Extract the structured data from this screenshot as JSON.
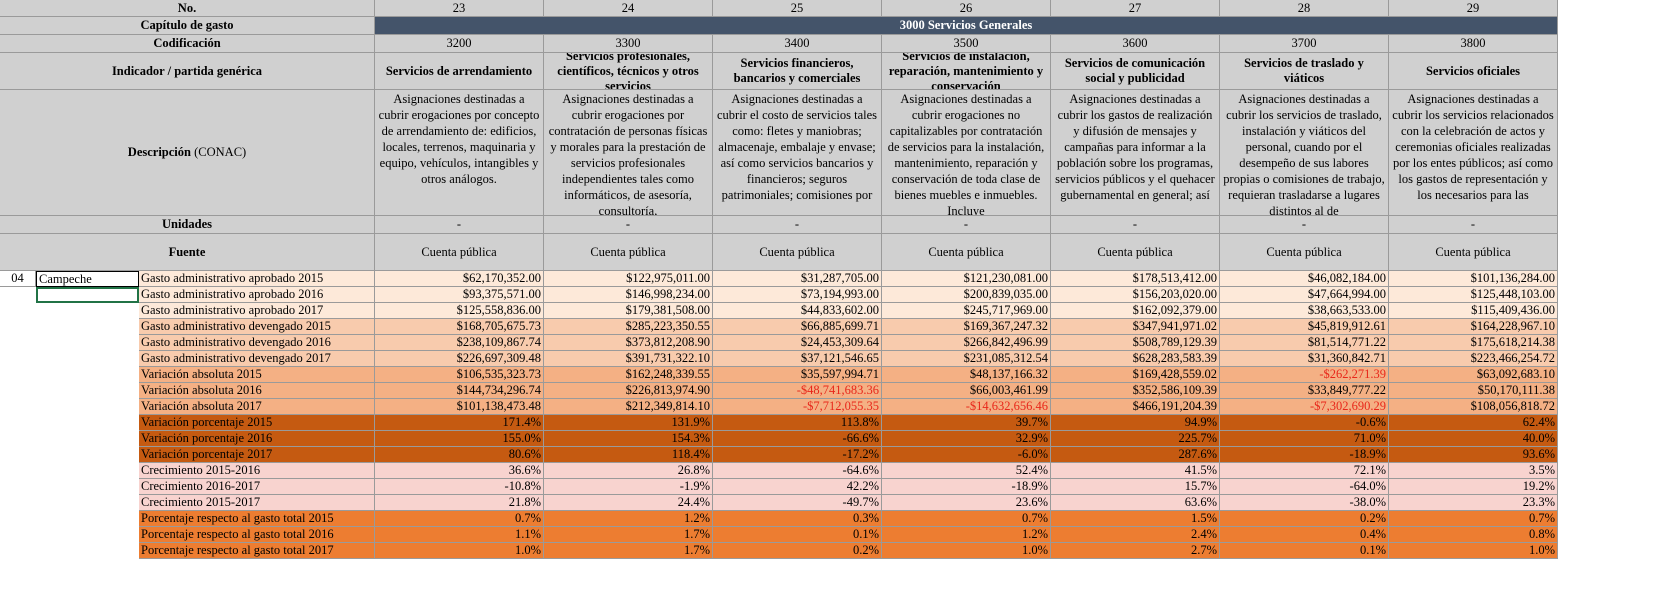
{
  "header": {
    "no_label": "No.",
    "capitulo_label": "Capítulo de gasto",
    "capitulo_value": "3000 Servicios Generales",
    "codificacion_label": "Codificación",
    "indicador_label": "Indicador / partida genérica",
    "descripcion_label": "Descripción",
    "descripcion_suffix": "(CONAC)",
    "unidades_label": "Unidades",
    "fuente_label": "Fuente"
  },
  "columns": [
    {
      "no": "23",
      "code": "3200",
      "title": "Servicios de arrendamiento",
      "desc": "Asignaciones destinadas a cubrir erogaciones por concepto de arrendamiento de: edificios, locales, terrenos, maquinaria y equipo, vehículos, intangibles y otros análogos.",
      "unit": "-",
      "source": "Cuenta pública"
    },
    {
      "no": "24",
      "code": "3300",
      "title": "Servicios profesionales, científicos, técnicos y otros servicios",
      "desc": "Asignaciones destinadas a cubrir erogaciones por contratación de personas físicas y morales para la prestación de servicios profesionales independientes tales como informáticos, de asesoría, consultoría,",
      "unit": "-",
      "source": "Cuenta pública"
    },
    {
      "no": "25",
      "code": "3400",
      "title": "Servicios financieros, bancarios y comerciales",
      "desc": "Asignaciones destinadas a cubrir el costo de servicios tales como: fletes y maniobras; almacenaje, embalaje y envase; así como servicios bancarios y financieros; seguros patrimoniales; comisiones por",
      "unit": "-",
      "source": "Cuenta pública"
    },
    {
      "no": "26",
      "code": "3500",
      "title": "Servicios de instalación, reparación, mantenimiento y conservación",
      "desc": "Asignaciones destinadas a cubrir erogaciones no capitalizables por contratación de servicios para la instalación, mantenimiento, reparación y conservación de toda clase de bienes muebles e inmuebles. Incluye",
      "unit": "-",
      "source": "Cuenta pública"
    },
    {
      "no": "27",
      "code": "3600",
      "title": "Servicios de comunicación social y publicidad",
      "desc": "Asignaciones destinadas a cubrir los gastos de realización y difusión de mensajes y campañas para informar a la población sobre los programas, servicios públicos y el quehacer gubernamental en general; así",
      "unit": "-",
      "source": "Cuenta pública"
    },
    {
      "no": "28",
      "code": "3700",
      "title": "Servicios de traslado y viáticos",
      "desc": "Asignaciones destinadas a cubrir los servicios de traslado, instalación y viáticos del personal, cuando por el desempeño de sus labores propias o comisiones de trabajo, requieran trasladarse a lugares distintos al de",
      "unit": "-",
      "source": "Cuenta pública"
    },
    {
      "no": "29",
      "code": "3800",
      "title": "Servicios oficiales",
      "desc": "Asignaciones destinadas a cubrir los servicios relacionados con la celebración de actos y ceremonias oficiales realizadas por los entes públicos; así como los gastos de representación y los necesarios para las",
      "unit": "-",
      "source": "Cuenta pública"
    }
  ],
  "state": {
    "no": "04",
    "name": "Campeche"
  },
  "rows": [
    {
      "label": "Gasto administrativo aprobado 2015",
      "bg": "bg1",
      "values": [
        "$62,170,352.00",
        "$122,975,011.00",
        "$31,287,705.00",
        "$121,230,081.00",
        "$178,513,412.00",
        "$46,082,184.00",
        "$101,136,284.00"
      ]
    },
    {
      "label": "Gasto administrativo aprobado 2016",
      "bg": "bg1",
      "values": [
        "$93,375,571.00",
        "$146,998,234.00",
        "$73,194,993.00",
        "$200,839,035.00",
        "$156,203,020.00",
        "$47,664,994.00",
        "$125,448,103.00"
      ]
    },
    {
      "label": "Gasto administrativo aprobado 2017",
      "bg": "bg1",
      "values": [
        "$125,558,836.00",
        "$179,381,508.00",
        "$44,833,602.00",
        "$245,717,969.00",
        "$162,092,379.00",
        "$38,663,533.00",
        "$115,409,436.00"
      ]
    },
    {
      "label": "Gasto administrativo devengado 2015",
      "bg": "bg2",
      "values": [
        "$168,705,675.73",
        "$285,223,350.55",
        "$66,885,699.71",
        "$169,367,247.32",
        "$347,941,971.02",
        "$45,819,912.61",
        "$164,228,967.10"
      ]
    },
    {
      "label": "Gasto administrativo devengado 2016",
      "bg": "bg2",
      "values": [
        "$238,109,867.74",
        "$373,812,208.90",
        "$24,453,309.64",
        "$266,842,496.99",
        "$508,789,129.39",
        "$81,514,771.22",
        "$175,618,214.38"
      ]
    },
    {
      "label": "Gasto administrativo devengado 2017",
      "bg": "bg2",
      "values": [
        "$226,697,309.48",
        "$391,731,322.10",
        "$37,121,546.65",
        "$231,085,312.54",
        "$628,283,583.39",
        "$31,360,842.71",
        "$223,466,254.72"
      ]
    },
    {
      "label": "Variación absoluta 2015",
      "bg": "bg3",
      "values": [
        "$106,535,323.73",
        "$162,248,339.55",
        "$35,597,994.71",
        "$48,137,166.32",
        "$169,428,559.02",
        "-$262,271.39",
        "$63,092,683.10"
      ]
    },
    {
      "label": "Variación absoluta 2016",
      "bg": "bg3",
      "values": [
        "$144,734,296.74",
        "$226,813,974.90",
        "-$48,741,683.36",
        "$66,003,461.99",
        "$352,586,109.39",
        "$33,849,777.22",
        "$50,170,111.38"
      ]
    },
    {
      "label": "Variación absoluta 2017",
      "bg": "bg3",
      "values": [
        "$101,138,473.48",
        "$212,349,814.10",
        "-$7,712,055.35",
        "-$14,632,656.46",
        "$466,191,204.39",
        "-$7,302,690.29",
        "$108,056,818.72"
      ]
    },
    {
      "label": "Variación porcentaje 2015",
      "bg": "bg4",
      "values": [
        "171.4%",
        "131.9%",
        "113.8%",
        "39.7%",
        "94.9%",
        "-0.6%",
        "62.4%"
      ]
    },
    {
      "label": "Variación porcentaje 2016",
      "bg": "bg4",
      "values": [
        "155.0%",
        "154.3%",
        "-66.6%",
        "32.9%",
        "225.7%",
        "71.0%",
        "40.0%"
      ]
    },
    {
      "label": "Variación porcentaje 2017",
      "bg": "bg4",
      "values": [
        "80.6%",
        "118.4%",
        "-17.2%",
        "-6.0%",
        "287.6%",
        "-18.9%",
        "93.6%"
      ]
    },
    {
      "label": "Crecimiento 2015-2016",
      "bg": "bg5",
      "values": [
        "36.6%",
        "26.8%",
        "-64.6%",
        "52.4%",
        "41.5%",
        "72.1%",
        "3.5%"
      ]
    },
    {
      "label": "Crecimiento 2016-2017",
      "bg": "bg5",
      "values": [
        "-10.8%",
        "-1.9%",
        "42.2%",
        "-18.9%",
        "15.7%",
        "-64.0%",
        "19.2%"
      ]
    },
    {
      "label": "Crecimiento 2015-2017",
      "bg": "bg5",
      "values": [
        "21.8%",
        "24.4%",
        "-49.7%",
        "23.6%",
        "63.6%",
        "-38.0%",
        "23.3%"
      ]
    },
    {
      "label": "Porcentaje respecto al gasto total 2015",
      "bg": "bg6",
      "values": [
        "0.7%",
        "1.2%",
        "0.3%",
        "0.7%",
        "1.5%",
        "0.2%",
        "0.7%"
      ]
    },
    {
      "label": "Porcentaje respecto al gasto total 2016",
      "bg": "bg6",
      "values": [
        "1.1%",
        "1.7%",
        "0.1%",
        "1.2%",
        "2.4%",
        "0.4%",
        "0.8%"
      ]
    },
    {
      "label": "Porcentaje respecto al gasto total 2017",
      "bg": "bg6",
      "values": [
        "1.0%",
        "1.7%",
        "0.2%",
        "1.0%",
        "2.7%",
        "0.1%",
        "1.0%"
      ]
    }
  ],
  "colors": {
    "banner": "#44546a",
    "header": "#d0d0d0",
    "negative": "#e8271a"
  }
}
